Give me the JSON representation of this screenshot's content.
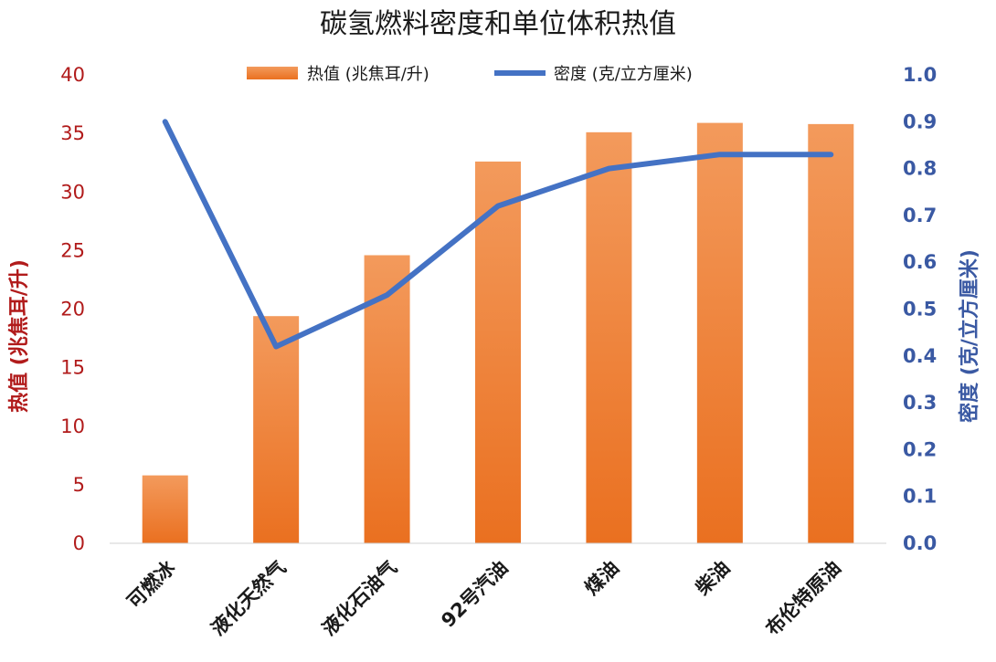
{
  "chart_data": {
    "type": "bar",
    "title": "碳氢燃料密度和单位体积热值",
    "categories": [
      "可燃冰",
      "液化天然气",
      "液化石油气",
      "92号汽油",
      "煤油",
      "柴油",
      "布伦特原油"
    ],
    "series": [
      {
        "name": "热值 (兆焦耳/升)",
        "type": "bar",
        "axis": "left",
        "color": "#ee7d2b",
        "values": [
          5.8,
          19.4,
          24.6,
          32.6,
          35.1,
          35.9,
          35.8
        ]
      },
      {
        "name": "密度 (克/立方厘米)",
        "type": "line",
        "axis": "right",
        "color": "#4472c4",
        "values": [
          0.9,
          0.42,
          0.53,
          0.72,
          0.8,
          0.83,
          0.83
        ]
      }
    ],
    "ylabel_left": "热值 (兆焦耳/升)",
    "ylabel_right": "密度 (克/立方厘米)",
    "ylim_left": [
      0,
      40
    ],
    "ylim_right": [
      0,
      1.0
    ],
    "yticks_left": [
      "0",
      "5",
      "10",
      "15",
      "20",
      "25",
      "30",
      "35",
      "40"
    ],
    "yticks_right": [
      "0.0",
      "0.1",
      "0.2",
      "0.3",
      "0.4",
      "0.5",
      "0.6",
      "0.7",
      "0.8",
      "0.9",
      "1.0"
    ],
    "legend_position": "top-center",
    "grid": false,
    "colors": {
      "left_axis": "#b11b1b",
      "right_axis": "#3a59a3",
      "bar_top": "#f39a5c",
      "bar_bottom": "#ea7020",
      "line": "#4472c4",
      "axis_line": "#d0d0d0"
    }
  }
}
